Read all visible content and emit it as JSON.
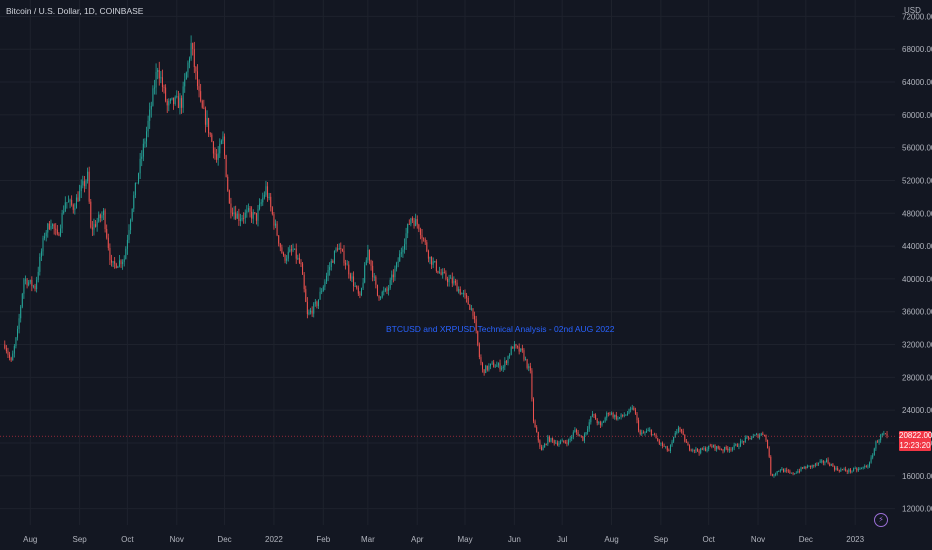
{
  "header": {
    "title": "Bitcoin / U.S. Dollar, 1D, COINBASE",
    "currency": "USD"
  },
  "annotation": {
    "text": "BTCUSD and XRPUSD Technical Analysis - 02nd AUG 2022",
    "color": "#2962ff"
  },
  "last_price": {
    "value": "20822.00",
    "countdown": "12:23:20",
    "color": "#f23645"
  },
  "colors": {
    "background": "#131722",
    "grid": "#1e222d",
    "up": "#26a69a",
    "down": "#ef5350",
    "axis_text": "#b2b5be"
  },
  "logo_icon": "lightning-bolt-icon",
  "chart_data": {
    "type": "candlestick",
    "interval": "1D",
    "yaxis_ticks": [
      "72000.00",
      "68000.00",
      "64000.00",
      "60000.00",
      "56000.00",
      "52000.00",
      "48000.00",
      "44000.00",
      "40000.00",
      "36000.00",
      "32000.00",
      "28000.00",
      "24000.00",
      "20000.00",
      "16000.00",
      "12000.00"
    ],
    "ylim": [
      10000,
      74000
    ],
    "xaxis_ticks": [
      "Aug",
      "Sep",
      "Oct",
      "Nov",
      "Dec",
      "2022",
      "Feb",
      "Mar",
      "Apr",
      "May",
      "Jun",
      "Jul",
      "Aug",
      "Sep",
      "Oct",
      "Nov",
      "Dec",
      "2023"
    ],
    "xlim": [
      "2021-07-13",
      "2023-01-26"
    ],
    "grid": true,
    "series_points": [
      [
        "2021-07-16",
        32000
      ],
      [
        "2021-07-20",
        29800
      ],
      [
        "2021-07-24",
        33500
      ],
      [
        "2021-07-28",
        40000
      ],
      [
        "2021-08-04",
        39000
      ],
      [
        "2021-08-10",
        45500
      ],
      [
        "2021-08-14",
        47000
      ],
      [
        "2021-08-18",
        45000
      ],
      [
        "2021-08-23",
        49500
      ],
      [
        "2021-08-28",
        48800
      ],
      [
        "2021-09-06",
        52500
      ],
      [
        "2021-09-08",
        46000
      ],
      [
        "2021-09-16",
        48000
      ],
      [
        "2021-09-21",
        41500
      ],
      [
        "2021-09-29",
        42500
      ],
      [
        "2021-10-04",
        49000
      ],
      [
        "2021-10-10",
        55000
      ],
      [
        "2021-10-15",
        60000
      ],
      [
        "2021-10-20",
        66000
      ],
      [
        "2021-10-26",
        61000
      ],
      [
        "2021-10-30",
        61500
      ],
      [
        "2021-11-04",
        61500
      ],
      [
        "2021-11-10",
        68500
      ],
      [
        "2021-11-16",
        61000
      ],
      [
        "2021-11-20",
        59000
      ],
      [
        "2021-11-26",
        54500
      ],
      [
        "2021-11-30",
        57000
      ],
      [
        "2021-12-04",
        49000
      ],
      [
        "2021-12-10",
        47500
      ],
      [
        "2021-12-16",
        48000
      ],
      [
        "2021-12-21",
        47500
      ],
      [
        "2021-12-27",
        51000
      ],
      [
        "2022-01-01",
        47000
      ],
      [
        "2022-01-07",
        42500
      ],
      [
        "2022-01-13",
        43500
      ],
      [
        "2022-01-18",
        41500
      ],
      [
        "2022-01-22",
        35500
      ],
      [
        "2022-01-28",
        37000
      ],
      [
        "2022-02-05",
        41500
      ],
      [
        "2022-02-10",
        44000
      ],
      [
        "2022-02-14",
        42500
      ],
      [
        "2022-02-19",
        40000
      ],
      [
        "2022-02-24",
        37500
      ],
      [
        "2022-03-01",
        43500
      ],
      [
        "2022-03-07",
        38000
      ],
      [
        "2022-03-13",
        38500
      ],
      [
        "2022-03-19",
        41500
      ],
      [
        "2022-03-28",
        47500
      ],
      [
        "2022-04-02",
        46500
      ],
      [
        "2022-04-09",
        42500
      ],
      [
        "2022-04-16",
        40500
      ],
      [
        "2022-04-24",
        39500
      ],
      [
        "2022-04-30",
        38000
      ],
      [
        "2022-05-06",
        36000
      ],
      [
        "2022-05-10",
        30500
      ],
      [
        "2022-05-12",
        28800
      ],
      [
        "2022-05-18",
        29500
      ],
      [
        "2022-05-25",
        29300
      ],
      [
        "2022-05-31",
        31800
      ],
      [
        "2022-06-06",
        31000
      ],
      [
        "2022-06-11",
        28500
      ],
      [
        "2022-06-13",
        22500
      ],
      [
        "2022-06-18",
        19000
      ],
      [
        "2022-06-22",
        20500
      ],
      [
        "2022-06-28",
        20000
      ],
      [
        "2022-07-05",
        20200
      ],
      [
        "2022-07-09",
        21500
      ],
      [
        "2022-07-14",
        20500
      ],
      [
        "2022-07-20",
        23500
      ],
      [
        "2022-07-25",
        22000
      ],
      [
        "2022-07-30",
        23800
      ],
      [
        "2022-08-05",
        23000
      ],
      [
        "2022-08-10",
        23500
      ],
      [
        "2022-08-15",
        24200
      ],
      [
        "2022-08-19",
        21000
      ],
      [
        "2022-08-25",
        21500
      ],
      [
        "2022-08-31",
        20000
      ],
      [
        "2022-09-06",
        19000
      ],
      [
        "2022-09-12",
        22000
      ],
      [
        "2022-09-18",
        19500
      ],
      [
        "2022-09-25",
        19000
      ],
      [
        "2022-10-03",
        19600
      ],
      [
        "2022-10-10",
        19200
      ],
      [
        "2022-10-17",
        19500
      ],
      [
        "2022-10-25",
        20500
      ],
      [
        "2022-11-05",
        21200
      ],
      [
        "2022-11-08",
        18500
      ],
      [
        "2022-11-09",
        16000
      ],
      [
        "2022-11-15",
        16800
      ],
      [
        "2022-11-22",
        16200
      ],
      [
        "2022-11-30",
        17000
      ],
      [
        "2022-12-05",
        17200
      ],
      [
        "2022-12-14",
        17800
      ],
      [
        "2022-12-20",
        16800
      ],
      [
        "2022-12-28",
        16600
      ],
      [
        "2023-01-04",
        16800
      ],
      [
        "2023-01-10",
        17400
      ],
      [
        "2023-01-14",
        20000
      ],
      [
        "2023-01-18",
        21000
      ],
      [
        "2023-01-21",
        20822
      ]
    ]
  }
}
